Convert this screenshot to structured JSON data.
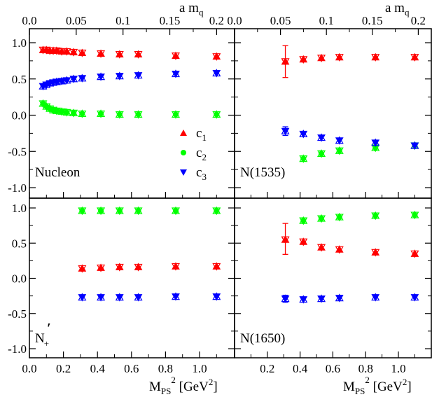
{
  "chart_data": {
    "type": "scatter",
    "top_axis_label": "a m",
    "top_axis_label_sub": "q",
    "bottom_axis_label": "M",
    "bottom_axis_label_sub": "PS",
    "bottom_axis_label_sup": "2",
    "bottom_axis_label_unit_pre": " [GeV",
    "bottom_axis_label_unit_sup": "2",
    "bottom_axis_label_unit_post": "]",
    "legend": [
      {
        "name": "c",
        "sub": "1",
        "marker": "triangle-up",
        "color": "#ff0000"
      },
      {
        "name": "c",
        "sub": "2",
        "marker": "circle",
        "color": "#00ff00"
      },
      {
        "name": "c",
        "sub": "3",
        "marker": "triangle-down",
        "color": "#0000ff"
      }
    ],
    "colors": {
      "c1": "#ff0000",
      "c2": "#00ff00",
      "c3": "#0000ff",
      "frame": "#000000"
    },
    "panels": [
      {
        "label": "Nucleon",
        "label_sub": "",
        "label_prime": "",
        "ylim": [
          -1.1,
          1.1
        ],
        "xlim": [
          0.0,
          1.2
        ],
        "yticks": [
          -1.0,
          -0.5,
          0.0,
          0.5,
          1.0
        ],
        "ytick_labels": [
          "-1.0",
          "-0.5",
          "0.0",
          "0.5",
          "1.0"
        ],
        "xticks": [
          0.0,
          0.2,
          0.4,
          0.6,
          0.8,
          1.0
        ],
        "xtick_labels": [],
        "top_ticks": [
          0.0,
          0.05,
          0.1,
          0.15,
          0.2
        ],
        "top_tick_labels": [
          "0.0",
          "0.05",
          "0.1",
          "0.15",
          "0.2"
        ],
        "show_legend": true,
        "series": [
          {
            "name": "c1",
            "x": [
              0.08,
              0.1,
              0.12,
              0.14,
              0.16,
              0.19,
              0.22,
              0.26,
              0.31,
              0.42,
              0.53,
              0.64,
              0.86,
              1.1
            ],
            "y": [
              0.9,
              0.9,
              0.89,
              0.89,
              0.89,
              0.88,
              0.88,
              0.87,
              0.86,
              0.85,
              0.84,
              0.84,
              0.82,
              0.81
            ]
          },
          {
            "name": "c2",
            "x": [
              0.08,
              0.1,
              0.12,
              0.14,
              0.16,
              0.19,
              0.22,
              0.26,
              0.31,
              0.42,
              0.53,
              0.64,
              0.86,
              1.1
            ],
            "y": [
              0.16,
              0.12,
              0.09,
              0.07,
              0.06,
              0.05,
              0.04,
              0.03,
              0.02,
              0.02,
              0.01,
              0.01,
              0.01,
              0.01
            ]
          },
          {
            "name": "c3",
            "x": [
              0.08,
              0.1,
              0.12,
              0.14,
              0.16,
              0.19,
              0.22,
              0.26,
              0.31,
              0.42,
              0.53,
              0.64,
              0.86,
              1.1
            ],
            "y": [
              0.4,
              0.42,
              0.44,
              0.45,
              0.46,
              0.47,
              0.48,
              0.5,
              0.51,
              0.53,
              0.54,
              0.55,
              0.57,
              0.58
            ]
          }
        ],
        "errorbars": []
      },
      {
        "label": "N(1535)",
        "label_sub": "",
        "label_prime": "",
        "ylim": [
          -1.1,
          1.1
        ],
        "xlim": [
          0.0,
          1.2
        ],
        "yticks": [
          -1.0,
          -0.5,
          0.0,
          0.5,
          1.0
        ],
        "ytick_labels": [],
        "xticks": [
          0.0,
          0.2,
          0.4,
          0.6,
          0.8,
          1.0
        ],
        "xtick_labels": [],
        "top_ticks": [
          0.0,
          0.05,
          0.1,
          0.15,
          0.2
        ],
        "top_tick_labels": [
          "0.0",
          "0.05",
          "0.1",
          "0.15",
          "0.2"
        ],
        "show_legend": false,
        "series": [
          {
            "name": "c1",
            "x": [
              0.31,
              0.42,
              0.53,
              0.64,
              0.86,
              1.1
            ],
            "y": [
              0.74,
              0.77,
              0.79,
              0.8,
              0.8,
              0.8
            ]
          },
          {
            "name": "c2",
            "x": [
              0.42,
              0.53,
              0.64,
              0.86,
              1.1
            ],
            "y": [
              -0.6,
              -0.53,
              -0.49,
              -0.45,
              -0.42
            ]
          },
          {
            "name": "c3",
            "x": [
              0.31,
              0.42,
              0.53,
              0.64,
              0.86,
              1.1
            ],
            "y": [
              -0.22,
              -0.26,
              -0.31,
              -0.35,
              -0.38,
              -0.42
            ]
          }
        ],
        "errorbars": [
          {
            "x": 0.31,
            "y": 0.74,
            "low": 0.52,
            "high": 0.96,
            "series": "c1"
          },
          {
            "x": 0.31,
            "y": -0.22,
            "low": -0.28,
            "high": -0.16,
            "series": "c3"
          }
        ]
      },
      {
        "label": "N",
        "label_sub": "+",
        "label_prime": "′",
        "ylim": [
          -1.1,
          1.1
        ],
        "xlim": [
          0.0,
          1.2
        ],
        "yticks": [
          -1.0,
          -0.5,
          0.0,
          0.5,
          1.0
        ],
        "ytick_labels": [
          "-1.0",
          "-0.5",
          "0.0",
          "0.5",
          "1.0"
        ],
        "xticks": [
          0.0,
          0.2,
          0.4,
          0.6,
          0.8,
          1.0
        ],
        "xtick_labels": [
          "0.0",
          "0.2",
          "0.4",
          "0.6",
          "0.8",
          "1.0"
        ],
        "top_ticks": [],
        "top_tick_labels": [],
        "show_legend": false,
        "series": [
          {
            "name": "c1",
            "x": [
              0.31,
              0.42,
              0.53,
              0.64,
              0.86,
              1.1
            ],
            "y": [
              0.14,
              0.15,
              0.16,
              0.16,
              0.17,
              0.17
            ]
          },
          {
            "name": "c2",
            "x": [
              0.31,
              0.42,
              0.53,
              0.64,
              0.86,
              1.1
            ],
            "y": [
              0.96,
              0.96,
              0.96,
              0.96,
              0.96,
              0.96
            ]
          },
          {
            "name": "c3",
            "x": [
              0.31,
              0.42,
              0.53,
              0.64,
              0.86,
              1.1
            ],
            "y": [
              -0.27,
              -0.27,
              -0.27,
              -0.27,
              -0.26,
              -0.26
            ]
          }
        ],
        "errorbars": []
      },
      {
        "label": "N(1650)",
        "label_sub": "",
        "label_prime": "",
        "ylim": [
          -1.1,
          1.1
        ],
        "xlim": [
          0.0,
          1.2
        ],
        "yticks": [
          -1.0,
          -0.5,
          0.0,
          0.5,
          1.0
        ],
        "ytick_labels": [],
        "xticks": [
          0.0,
          0.2,
          0.4,
          0.6,
          0.8,
          1.0
        ],
        "xtick_labels": [
          "0.2",
          "0.4",
          "0.6",
          "0.8",
          "1.0"
        ],
        "xtick_label_values": [
          0.2,
          0.4,
          0.6,
          0.8,
          1.0
        ],
        "top_ticks": [],
        "top_tick_labels": [],
        "show_legend": false,
        "series": [
          {
            "name": "c1",
            "x": [
              0.31,
              0.42,
              0.53,
              0.64,
              0.86,
              1.1
            ],
            "y": [
              0.55,
              0.52,
              0.44,
              0.41,
              0.37,
              0.35
            ]
          },
          {
            "name": "c2",
            "x": [
              0.42,
              0.53,
              0.64,
              0.86,
              1.1
            ],
            "y": [
              0.82,
              0.85,
              0.87,
              0.89,
              0.9
            ]
          },
          {
            "name": "c3",
            "x": [
              0.31,
              0.42,
              0.53,
              0.64,
              0.86,
              1.1
            ],
            "y": [
              -0.29,
              -0.3,
              -0.29,
              -0.28,
              -0.27,
              -0.27
            ]
          }
        ],
        "errorbars": [
          {
            "x": 0.31,
            "y": 0.55,
            "low": 0.34,
            "high": 0.78,
            "series": "c1"
          },
          {
            "x": 0.31,
            "y": -0.29,
            "low": -0.34,
            "high": -0.24,
            "series": "c3"
          }
        ]
      }
    ]
  }
}
